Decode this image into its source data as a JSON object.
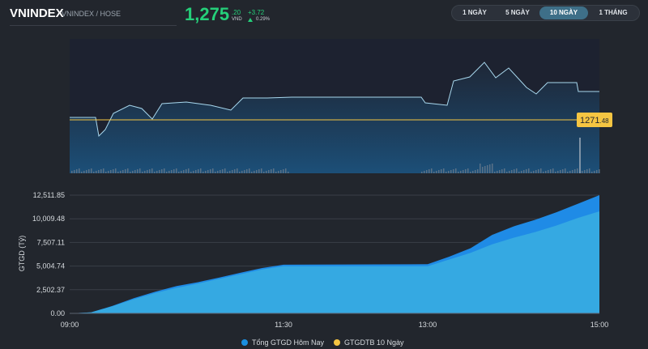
{
  "header": {
    "symbol": "VNINDEX",
    "subtitle": "VNINDEX / HOSE",
    "price": "1,275",
    "price_decimal": ".20",
    "unit": "VND",
    "change": "+3.72",
    "change_pct": "0.29%",
    "up_color": "#25d07a"
  },
  "tabs": [
    {
      "label": "1 NGÀY",
      "active": false
    },
    {
      "label": "5 NGÀY",
      "active": false
    },
    {
      "label": "10 NGÀY",
      "active": true
    },
    {
      "label": "1 THÁNG",
      "active": false
    }
  ],
  "price_chart": {
    "reference_value": 1271.48,
    "reference_label_int": "1271",
    "reference_label_dec": ".48",
    "reference_color": "#f5c542",
    "line_color": "#a8d8ee"
  },
  "chart_data": {
    "type": "area",
    "ylabel": "GTGD (Tỷ)",
    "yticks": [
      "12,511.85",
      "10,009.48",
      "7,507.11",
      "5,004.74",
      "2,502.37",
      "0.00"
    ],
    "xticks": [
      "09:00",
      "11:30",
      "13:00",
      "15:00"
    ],
    "ylim": [
      0,
      12511.85
    ],
    "series": [
      {
        "name": "Tổng GTGD Hôm Nay",
        "color": "#1a8fe0",
        "x": [
          "09:00",
          "09:15",
          "09:30",
          "09:45",
          "10:00",
          "10:15",
          "10:30",
          "10:45",
          "11:00",
          "11:15",
          "11:30",
          "13:00",
          "13:15",
          "13:30",
          "13:45",
          "14:00",
          "14:15",
          "14:30",
          "14:45",
          "15:00"
        ],
        "values": [
          0,
          100,
          800,
          1600,
          2300,
          2900,
          3300,
          3800,
          4300,
          4800,
          5150,
          5200,
          6000,
          6900,
          8300,
          9200,
          9900,
          10700,
          11600,
          12511.85
        ]
      },
      {
        "name": "GTGDTB 10 Ngày",
        "color": "#f5c542",
        "x": [
          "09:00",
          "09:15",
          "09:30",
          "09:45",
          "10:00",
          "10:15",
          "10:30",
          "10:45",
          "11:00",
          "11:15",
          "11:30",
          "13:00",
          "13:15",
          "13:30",
          "13:45",
          "14:00",
          "14:15",
          "14:30",
          "14:45",
          "15:00"
        ],
        "values": [
          0,
          100,
          750,
          1500,
          2150,
          2700,
          3150,
          3650,
          4150,
          4650,
          5000,
          5000,
          5700,
          6400,
          7300,
          8000,
          8600,
          9300,
          10100,
          10800
        ]
      }
    ],
    "fill_colors": {
      "total": "#1f8be6",
      "average": "#35a9e2"
    }
  },
  "legend": [
    {
      "label": "Tổng GTGD Hôm Nay",
      "color": "#1a8fe0"
    },
    {
      "label": "GTGDTB 10 Ngày",
      "color": "#f5c542"
    }
  ]
}
